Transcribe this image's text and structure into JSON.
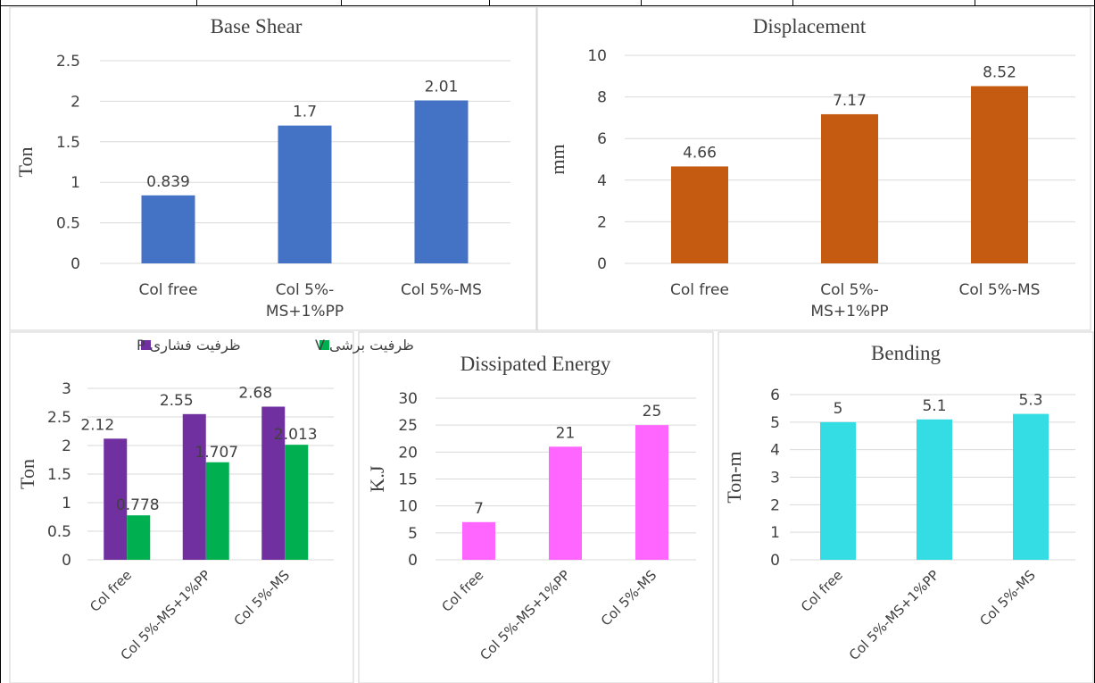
{
  "colors": {
    "blue": "#4472C4",
    "orange": "#C55A11",
    "purple": "#7030A0",
    "green": "#00B050",
    "magenta": "#FF66FF",
    "cyan": "#33DDE3"
  },
  "chart_data": [
    {
      "type": "bar",
      "title": "Base Shear",
      "ylabel": "Ton",
      "categories": [
        "Col free",
        "Col 5%-MS+1%PP",
        "Col 5%-MS"
      ],
      "category_lines": [
        [
          "Col free"
        ],
        [
          "Col 5%-",
          "MS+1%PP"
        ],
        [
          "Col 5%-MS"
        ]
      ],
      "series": [
        {
          "values": [
            0.839,
            1.7,
            2.01
          ]
        }
      ],
      "data_labels": [
        [
          "0.839",
          "1.7",
          "2.01"
        ]
      ],
      "ylim": [
        0,
        2.5
      ],
      "yticks": [
        "0",
        "0.5",
        "1",
        "1.5",
        "2",
        "2.5"
      ],
      "grid": true,
      "colors": [
        "#4472C4"
      ]
    },
    {
      "type": "bar",
      "title": "Displacement",
      "ylabel": "mm",
      "categories": [
        "Col free",
        "Col 5%-MS+1%PP",
        "Col 5%-MS"
      ],
      "category_lines": [
        [
          "Col free"
        ],
        [
          "Col 5%-",
          "MS+1%PP"
        ],
        [
          "Col 5%-MS"
        ]
      ],
      "series": [
        {
          "values": [
            4.66,
            7.17,
            8.52
          ]
        }
      ],
      "data_labels": [
        [
          "4.66",
          "7.17",
          "8.52"
        ]
      ],
      "ylim": [
        0,
        10
      ],
      "yticks": [
        "0",
        "2",
        "4",
        "6",
        "8",
        "10"
      ],
      "grid": true,
      "colors": [
        "#C55A11"
      ]
    },
    {
      "type": "bar",
      "title": "",
      "ylabel": "Ton",
      "categories": [
        "Col free",
        "Col 5%-MS+1%PP",
        "Col 5%-MS"
      ],
      "series": [
        {
          "name": "ظرفیت فشاری P",
          "values": [
            2.12,
            2.55,
            2.68
          ]
        },
        {
          "name": "ظرفیت برشی V",
          "values": [
            0.778,
            1.707,
            2.013
          ]
        }
      ],
      "data_labels": [
        [
          "2.12",
          "2.55",
          "2.68"
        ],
        [
          "0.778",
          "1.707",
          "2.013"
        ]
      ],
      "ylim": [
        0,
        3
      ],
      "yticks": [
        "0",
        "0.5",
        "1",
        "1.5",
        "2",
        "2.5",
        "3"
      ],
      "grid": true,
      "legend": "top",
      "colors": [
        "#7030A0",
        "#00B050"
      ]
    },
    {
      "type": "bar",
      "title": "Dissipated Energy",
      "ylabel": "K.J",
      "categories": [
        "Col free",
        "Col 5%-MS+1%PP",
        "Col 5%-MS"
      ],
      "series": [
        {
          "values": [
            7,
            21,
            25
          ]
        }
      ],
      "data_labels": [
        [
          "7",
          "21",
          "25"
        ]
      ],
      "ylim": [
        0,
        30
      ],
      "yticks": [
        "0",
        "5",
        "10",
        "15",
        "20",
        "25",
        "30"
      ],
      "grid": true,
      "colors": [
        "#FF66FF"
      ]
    },
    {
      "type": "bar",
      "title": "Bending",
      "ylabel": "Ton-m",
      "categories": [
        "Col free",
        "Col 5%-MS+1%PP",
        "Col 5%-MS"
      ],
      "series": [
        {
          "values": [
            5,
            5.1,
            5.3
          ]
        }
      ],
      "data_labels": [
        [
          "5",
          "5.1",
          "5.3"
        ]
      ],
      "ylim": [
        0,
        6
      ],
      "yticks": [
        "0",
        "1",
        "2",
        "3",
        "4",
        "5",
        "6"
      ],
      "grid": true,
      "colors": [
        "#33DDE3"
      ]
    }
  ]
}
